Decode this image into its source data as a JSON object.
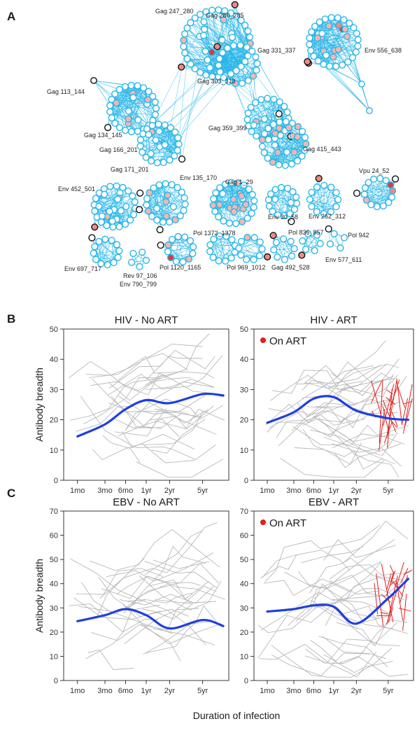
{
  "panels": {
    "a": "A",
    "b": "B",
    "c": "C"
  },
  "network": {
    "labels": [
      "Gag 247_280",
      "Gag 280_285",
      "Gag 331_337",
      "Gag 303_313",
      "Env 556_638",
      "Gag 113_144",
      "Gag 134_145",
      "Gag 166_201",
      "Gag 171_201",
      "Gag 359_399",
      "Gag 415_443",
      "Env 135_170",
      "Gag 1_29",
      "Vpu 24_52",
      "Env 452_501",
      "Env 262_312",
      "Env 30_58",
      "Pol 1372_1378",
      "Pol 836_857",
      "Pol 942",
      "Env 697_717",
      "Rev 97_106",
      "Env 790_799",
      "Pol 1120_1165",
      "Pol 969_1012",
      "Gag 492_528",
      "Env 577_611"
    ],
    "colors": {
      "node_fill": "#ffffff",
      "node_stroke": "#29b6e8",
      "edge": "#29b6e8",
      "pink": "#f4b5b2",
      "salmon": "#ee8a86",
      "red": "#e0383a",
      "black_outline": "#111111"
    }
  },
  "axis_label_x": "Duration of infection",
  "chart_data": [
    {
      "type": "line",
      "title": "HIV - No ART",
      "ylabel": "Antibody breadth",
      "xlabel": "Duration of infection",
      "x_ticks": [
        "1mo",
        "3mo",
        "6mo",
        "1yr",
        "2yr",
        "5yr"
      ],
      "y_ticks": [
        0,
        10,
        20,
        30,
        40,
        50
      ],
      "ylim": [
        0,
        50
      ],
      "legend": "",
      "series": [
        {
          "values_x": [
            "1mo",
            "3mo",
            "6mo",
            "1yr",
            "2yr",
            "5yr",
            "7yr"
          ],
          "values": [
            14.5,
            18.5,
            23.5,
            26.5,
            25.5,
            28.5,
            28
          ]
        }
      ],
      "colors": {
        "mean": "#1f3fe0",
        "individual": "#b8b8b8",
        "on_art": "#e0201c"
      }
    },
    {
      "type": "line",
      "title": "HIV - ART",
      "ylabel": "",
      "xlabel": "Duration of infection",
      "x_ticks": [
        "1mo",
        "3mo",
        "6mo",
        "1yr",
        "2yr",
        "5yr"
      ],
      "y_ticks": [
        0,
        10,
        20,
        30,
        40,
        50
      ],
      "ylim": [
        0,
        50
      ],
      "legend": "On ART",
      "series": [
        {
          "values_x": [
            "1mo",
            "3mo",
            "6mo",
            "1yr",
            "2yr",
            "5yr",
            "7yr"
          ],
          "values": [
            19,
            22.5,
            27,
            27.5,
            23,
            20.5,
            20
          ]
        }
      ],
      "colors": {
        "mean": "#1f3fe0",
        "individual": "#b8b8b8",
        "on_art": "#e0201c"
      }
    },
    {
      "type": "line",
      "title": "EBV - No ART",
      "ylabel": "Antibody breadth",
      "xlabel": "Duration of infection",
      "x_ticks": [
        "1mo",
        "3mo",
        "6mo",
        "1yr",
        "2yr",
        "5yr"
      ],
      "y_ticks": [
        0,
        10,
        20,
        30,
        40,
        50,
        60,
        70
      ],
      "ylim": [
        0,
        70
      ],
      "legend": "",
      "series": [
        {
          "values_x": [
            "1mo",
            "3mo",
            "6mo",
            "1yr",
            "2yr",
            "5yr",
            "7yr"
          ],
          "values": [
            24.5,
            27,
            29.5,
            27,
            21.5,
            25,
            22.5
          ]
        }
      ],
      "colors": {
        "mean": "#1f3fe0",
        "individual": "#b8b8b8",
        "on_art": "#e0201c"
      }
    },
    {
      "type": "line",
      "title": "EBV - ART",
      "ylabel": "",
      "xlabel": "Duration of infection",
      "x_ticks": [
        "1mo",
        "3mo",
        "6mo",
        "1yr",
        "2yr",
        "5yr"
      ],
      "y_ticks": [
        0,
        10,
        20,
        30,
        40,
        50,
        60,
        70
      ],
      "ylim": [
        0,
        70
      ],
      "legend": "On ART",
      "series": [
        {
          "values_x": [
            "1mo",
            "3mo",
            "6mo",
            "1yr",
            "2yr",
            "5yr",
            "7yr"
          ],
          "values": [
            28.5,
            29.5,
            31,
            30.5,
            23.5,
            34,
            42
          ]
        }
      ],
      "colors": {
        "mean": "#1f3fe0",
        "individual": "#b8b8b8",
        "on_art": "#e0201c"
      }
    }
  ]
}
